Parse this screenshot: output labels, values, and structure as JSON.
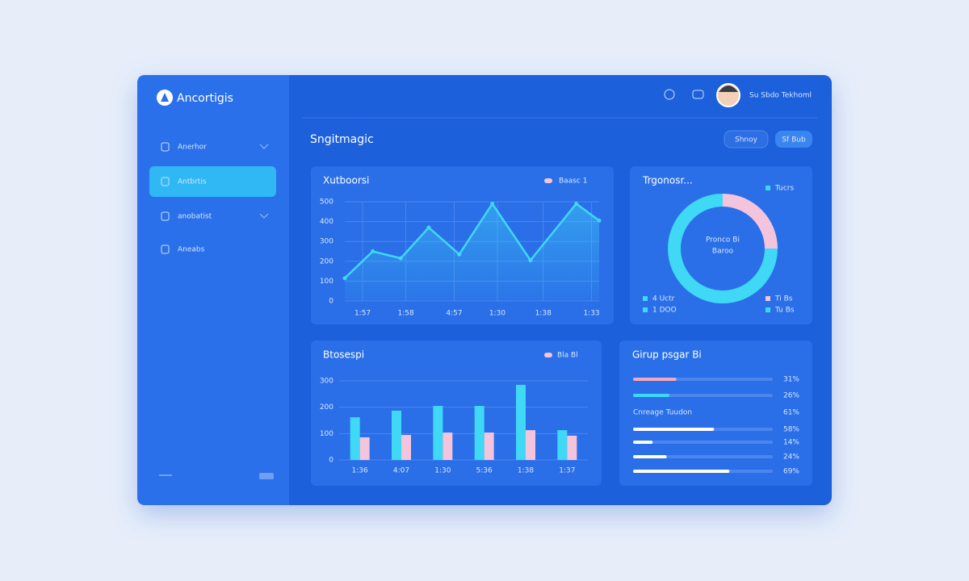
{
  "app": {
    "brand": "Ancortigis",
    "nav": [
      "Anerhor",
      "Antbrtis",
      "anobatist",
      "Aneabs"
    ],
    "active": 1
  },
  "header": {
    "user": "Su Sbdo Tekhoml",
    "title": "Sngitmagic",
    "buttons": [
      "Shnoy",
      "Sf Bub"
    ]
  },
  "chart_data": [
    {
      "type": "line",
      "title": "Xutboorsi",
      "legend": "Baasc 1",
      "x": [
        0,
        1.1,
        2.2,
        3.3,
        4.5,
        5.8,
        7.3,
        9.1,
        10
      ],
      "xlim": [
        0,
        10
      ],
      "xticks": [
        {
          "value": 0.7,
          "label": "1:57"
        },
        {
          "value": 2.4,
          "label": "1:58"
        },
        {
          "value": 4.3,
          "label": "4:57"
        },
        {
          "value": 6.0,
          "label": "1:30"
        },
        {
          "value": 7.8,
          "label": "1:38"
        },
        {
          "value": 9.7,
          "label": "1:33"
        }
      ],
      "series": [
        {
          "name": "Baasc 1",
          "color": "#3fd8f5",
          "values": [
            115,
            250,
            215,
            370,
            235,
            490,
            205,
            490,
            405
          ]
        }
      ],
      "ylim": [
        0,
        500
      ],
      "yticks": [
        0,
        100,
        200,
        300,
        400,
        500
      ],
      "grid": true
    },
    {
      "type": "bar",
      "title": "Btosespi",
      "legend": "Bla Bl",
      "categories": [
        "1:36",
        "4:07",
        "1:30",
        "5:36",
        "1:38",
        "1:37"
      ],
      "series": [
        {
          "name": "Bla",
          "color": "#3fd8f5",
          "values": [
            162,
            187,
            205,
            205,
            285,
            113
          ]
        },
        {
          "name": "Bl",
          "color": "#f4c4dc",
          "values": [
            86,
            95,
            104,
            104,
            113,
            92
          ]
        }
      ],
      "ylim": [
        0,
        300
      ],
      "yticks": [
        0,
        100,
        200,
        300
      ],
      "grid": true
    },
    {
      "type": "pie",
      "title": "Trgonosr...",
      "donut": true,
      "center": [
        "Pronco Bi",
        "Baroo"
      ],
      "categories": [
        "Tucrs",
        "Ti Bs"
      ],
      "values": [
        25,
        75
      ],
      "colors": [
        "#f4c4dc",
        "#3fd8f5"
      ],
      "extra_labels": [
        "4 Uctr",
        "1 DOO",
        "Tu Bs"
      ]
    }
  ],
  "progress": {
    "title": "Girup psgar Bi",
    "note": "Cnreage Tuudon",
    "note_value": "61%",
    "rows": [
      {
        "value": 31,
        "value_label": "31%",
        "color": "#f4a8c0"
      },
      {
        "value": 26,
        "value_label": "26%",
        "color": "#3fd8f5"
      },
      {
        "value": 58,
        "value_label": "58%",
        "color": "#ffffff"
      },
      {
        "value": 14,
        "value_label": "14%",
        "color": "#ffffff"
      },
      {
        "value": 24,
        "value_label": "24%",
        "color": "#ffffff"
      },
      {
        "value": 69,
        "value_label": "69%",
        "color": "#ffffff"
      }
    ]
  }
}
